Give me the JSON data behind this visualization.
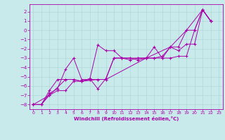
{
  "title": "",
  "xlabel": "Windchill (Refroidissement éolien,°C)",
  "ylabel": "",
  "bg_color": "#c8eaea",
  "grid_color": "#b0d8d8",
  "line_color": "#aa00aa",
  "xlim": [
    -0.5,
    23.5
  ],
  "ylim": [
    -8.5,
    2.8
  ],
  "xticks": [
    0,
    1,
    2,
    3,
    4,
    5,
    6,
    7,
    8,
    9,
    10,
    11,
    12,
    13,
    14,
    15,
    16,
    17,
    18,
    19,
    20,
    21,
    22,
    23
  ],
  "yticks": [
    -8,
    -7,
    -6,
    -5,
    -4,
    -3,
    -2,
    -1,
    0,
    1,
    2
  ],
  "series": [
    [
      0,
      -8.0
    ],
    [
      1,
      -8.0
    ],
    [
      2,
      -7.0
    ],
    [
      3,
      -6.5
    ],
    [
      4,
      -6.5
    ],
    [
      5,
      -5.5
    ],
    [
      6,
      -5.5
    ],
    [
      7,
      -5.2
    ],
    [
      8,
      -6.3
    ],
    [
      9,
      -5.2
    ],
    [
      10,
      -3.0
    ],
    [
      11,
      -3.0
    ],
    [
      12,
      -3.0
    ],
    [
      13,
      -3.2
    ],
    [
      14,
      -3.0
    ],
    [
      15,
      -3.0
    ],
    [
      16,
      -3.0
    ],
    [
      17,
      -3.0
    ],
    [
      18,
      -2.8
    ],
    [
      19,
      -2.8
    ],
    [
      20,
      0.0
    ],
    [
      21,
      2.2
    ],
    [
      22,
      1.0
    ]
  ],
  "series2": [
    [
      0,
      -8.0
    ],
    [
      1,
      -8.0
    ],
    [
      2,
      -6.8
    ],
    [
      3,
      -6.3
    ],
    [
      4,
      -4.2
    ],
    [
      5,
      -3.0
    ],
    [
      6,
      -5.3
    ],
    [
      7,
      -5.3
    ],
    [
      8,
      -1.6
    ],
    [
      9,
      -2.2
    ],
    [
      10,
      -2.2
    ],
    [
      11,
      -3.0
    ],
    [
      12,
      -3.0
    ],
    [
      13,
      -3.0
    ],
    [
      14,
      -3.0
    ],
    [
      15,
      -1.8
    ],
    [
      16,
      -3.0
    ],
    [
      17,
      -1.8
    ],
    [
      18,
      -2.2
    ],
    [
      19,
      -1.5
    ],
    [
      20,
      -1.5
    ],
    [
      21,
      2.2
    ],
    [
      22,
      1.0
    ]
  ],
  "series3": [
    [
      0,
      -8.0
    ],
    [
      1,
      -8.0
    ],
    [
      2,
      -6.5
    ],
    [
      3,
      -5.3
    ],
    [
      4,
      -5.3
    ],
    [
      5,
      -5.3
    ],
    [
      6,
      -5.5
    ],
    [
      7,
      -5.3
    ],
    [
      8,
      -5.3
    ],
    [
      9,
      -5.3
    ],
    [
      10,
      -3.0
    ],
    [
      11,
      -3.0
    ],
    [
      12,
      -3.2
    ],
    [
      13,
      -3.0
    ],
    [
      14,
      -3.0
    ],
    [
      15,
      -3.0
    ],
    [
      16,
      -2.8
    ],
    [
      17,
      -1.8
    ],
    [
      18,
      -1.8
    ],
    [
      19,
      0.0
    ],
    [
      20,
      0.0
    ],
    [
      21,
      2.2
    ],
    [
      22,
      1.0
    ]
  ],
  "series4": [
    [
      0,
      -8.0
    ],
    [
      2,
      -7.0
    ],
    [
      4,
      -5.3
    ],
    [
      5,
      -5.3
    ],
    [
      6,
      -5.5
    ],
    [
      8,
      -5.3
    ],
    [
      9,
      -5.3
    ],
    [
      14,
      -3.0
    ],
    [
      17,
      -1.8
    ],
    [
      19,
      0.0
    ],
    [
      21,
      2.2
    ],
    [
      22,
      1.0
    ]
  ]
}
